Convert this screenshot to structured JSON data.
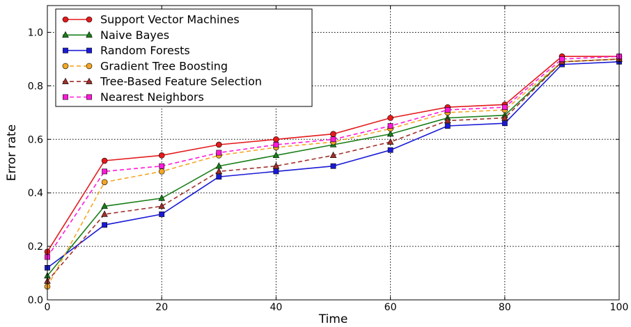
{
  "chart_data": {
    "type": "line",
    "xlabel": "Time",
    "ylabel": "Error rate",
    "xlim": [
      0,
      100
    ],
    "ylim": [
      0.0,
      1.1
    ],
    "x_ticks": [
      "0",
      "20",
      "40",
      "60",
      "80",
      "100"
    ],
    "y_ticks": [
      "0.0",
      "0.2",
      "0.4",
      "0.6",
      "0.8",
      "1.0"
    ],
    "grid": true,
    "legend_position": "top-left",
    "x": [
      0,
      10,
      20,
      30,
      40,
      50,
      60,
      70,
      80,
      90,
      100
    ],
    "series": [
      {
        "name": "Support Vector Machines",
        "color": "#e41a1c",
        "linestyle": "solid",
        "marker": "circle",
        "values": [
          0.18,
          0.52,
          0.54,
          0.58,
          0.6,
          0.62,
          0.68,
          0.72,
          0.73,
          0.91,
          0.91
        ]
      },
      {
        "name": "Naive Bayes",
        "color": "#1a7f1a",
        "linestyle": "solid",
        "marker": "triangle",
        "values": [
          0.09,
          0.35,
          0.38,
          0.5,
          0.54,
          0.58,
          0.62,
          0.68,
          0.69,
          0.89,
          0.9
        ]
      },
      {
        "name": "Random Forests",
        "color": "#1a1ad6",
        "linestyle": "solid",
        "marker": "square",
        "values": [
          0.12,
          0.28,
          0.32,
          0.46,
          0.48,
          0.5,
          0.56,
          0.65,
          0.66,
          0.88,
          0.89
        ]
      },
      {
        "name": "Gradient Tree Boosting",
        "color": "#f5a623",
        "linestyle": "dashed",
        "marker": "circle",
        "values": [
          0.05,
          0.44,
          0.48,
          0.54,
          0.57,
          0.59,
          0.64,
          0.7,
          0.71,
          0.89,
          0.9
        ]
      },
      {
        "name": "Tree-Based Feature Selection",
        "color": "#a0302a",
        "linestyle": "dashed",
        "marker": "triangle",
        "values": [
          0.07,
          0.32,
          0.35,
          0.48,
          0.5,
          0.54,
          0.59,
          0.67,
          0.68,
          0.89,
          0.9
        ]
      },
      {
        "name": "Nearest Neighbors",
        "color": "#ff1ad9",
        "linestyle": "dashed",
        "marker": "square",
        "values": [
          0.16,
          0.48,
          0.5,
          0.55,
          0.58,
          0.6,
          0.65,
          0.71,
          0.72,
          0.9,
          0.91
        ]
      }
    ]
  }
}
